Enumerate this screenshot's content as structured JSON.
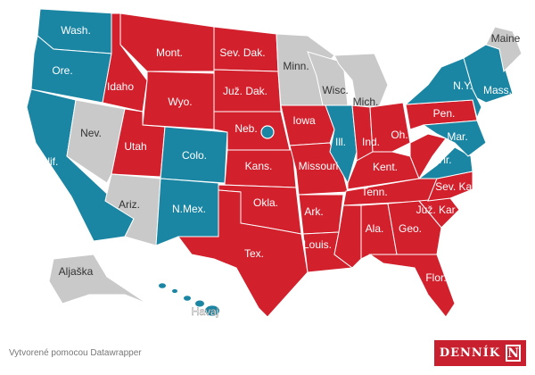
{
  "colors": {
    "red": "#d2202c",
    "blue": "#1a86a4",
    "gray": "#c9c9c9",
    "border": "#ffffff"
  },
  "states": [
    {
      "id": "wa",
      "label": "Wash.",
      "fill": "blue"
    },
    {
      "id": "or",
      "label": "Ore.",
      "fill": "blue"
    },
    {
      "id": "ca",
      "label": "Kalif.",
      "fill": "blue"
    },
    {
      "id": "nv",
      "label": "Nev.",
      "fill": "gray"
    },
    {
      "id": "id",
      "label": "Idaho",
      "fill": "red"
    },
    {
      "id": "mt",
      "label": "Mont.",
      "fill": "red"
    },
    {
      "id": "wy",
      "label": "Wyo.",
      "fill": "red"
    },
    {
      "id": "ut",
      "label": "Utah",
      "fill": "red"
    },
    {
      "id": "co",
      "label": "Colo.",
      "fill": "blue"
    },
    {
      "id": "az",
      "label": "Ariz.",
      "fill": "gray"
    },
    {
      "id": "nm",
      "label": "N.Mex.",
      "fill": "blue"
    },
    {
      "id": "nd",
      "label": "Sev. Dak.",
      "fill": "red"
    },
    {
      "id": "sd",
      "label": "Juž. Dak.",
      "fill": "red"
    },
    {
      "id": "ne",
      "label": "Neb.",
      "fill": "red"
    },
    {
      "id": "ks",
      "label": "Kans.",
      "fill": "red"
    },
    {
      "id": "ok",
      "label": "Okla.",
      "fill": "red"
    },
    {
      "id": "tx",
      "label": "Tex.",
      "fill": "red"
    },
    {
      "id": "mn",
      "label": "Minn.",
      "fill": "gray"
    },
    {
      "id": "ia",
      "label": "Iowa",
      "fill": "red"
    },
    {
      "id": "mo",
      "label": "Missouri",
      "fill": "red"
    },
    {
      "id": "ar",
      "label": "Ark.",
      "fill": "red"
    },
    {
      "id": "la",
      "label": "Louis.",
      "fill": "red"
    },
    {
      "id": "wi",
      "label": "Wisc.",
      "fill": "gray"
    },
    {
      "id": "mi",
      "label": "Mich.",
      "fill": "gray"
    },
    {
      "id": "il",
      "label": "Ill.",
      "fill": "blue"
    },
    {
      "id": "in",
      "label": "Ind.",
      "fill": "red"
    },
    {
      "id": "oh",
      "label": "Oh.",
      "fill": "red"
    },
    {
      "id": "ky",
      "label": "Kent.",
      "fill": "red"
    },
    {
      "id": "tn",
      "label": "Tenn.",
      "fill": "red"
    },
    {
      "id": "ms",
      "label": "",
      "fill": "red"
    },
    {
      "id": "al",
      "label": "Ala.",
      "fill": "red"
    },
    {
      "id": "ga",
      "label": "Geo.",
      "fill": "red"
    },
    {
      "id": "fl",
      "label": "Flor.",
      "fill": "red"
    },
    {
      "id": "sc",
      "label": "Juž. Kar.",
      "fill": "red"
    },
    {
      "id": "nc",
      "label": "Sev. Kar.",
      "fill": "red"
    },
    {
      "id": "va",
      "label": "Vir.",
      "fill": "blue"
    },
    {
      "id": "wv",
      "label": "",
      "fill": "red"
    },
    {
      "id": "pa",
      "label": "Pen.",
      "fill": "red"
    },
    {
      "id": "md",
      "label": "Mar.",
      "fill": "blue"
    },
    {
      "id": "ny",
      "label": "N.Y.",
      "fill": "blue"
    },
    {
      "id": "ne_eng",
      "label": "Mass.",
      "fill": "blue"
    },
    {
      "id": "me",
      "label": "Maine",
      "fill": "gray"
    },
    {
      "id": "ak",
      "label": "Aljaška",
      "fill": "gray"
    },
    {
      "id": "hi",
      "label": "Havaj",
      "fill": "blue"
    },
    {
      "id": "ne2",
      "label": "",
      "fill": "blue"
    }
  ],
  "footer": {
    "credit": "Vytvorené pomocou Datawrapper",
    "logo": "DENNÍK",
    "logo_mark": "N"
  }
}
